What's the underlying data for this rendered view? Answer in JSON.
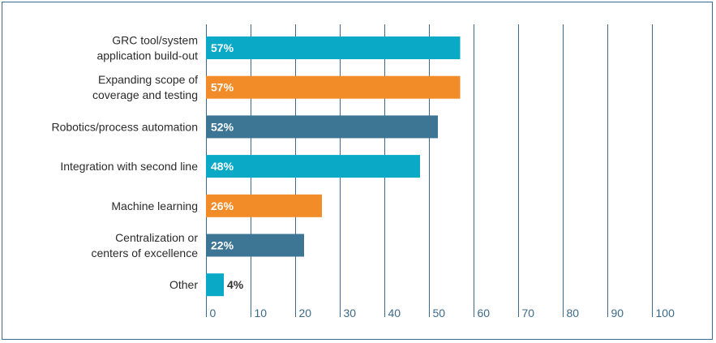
{
  "chart_data": {
    "type": "bar",
    "orientation": "horizontal",
    "title": "",
    "xlabel": "",
    "ylabel": "",
    "xlim": [
      0,
      100
    ],
    "x_ticks": [
      "0",
      "10",
      "20",
      "30",
      "40",
      "50",
      "60",
      "70",
      "80",
      "90",
      "100"
    ],
    "grid": true,
    "categories": [
      [
        "GRC tool/system",
        "application build-out"
      ],
      [
        "Expanding scope of",
        "coverage and testing"
      ],
      [
        "Robotics/process automation"
      ],
      [
        "Integration with second line"
      ],
      [
        "Machine learning"
      ],
      [
        "Centralization or",
        "centers of excellence"
      ],
      [
        "Other"
      ]
    ],
    "values": [
      57,
      57,
      52,
      48,
      26,
      22,
      4
    ],
    "data_labels": [
      "57%",
      "57%",
      "52%",
      "48%",
      "26%",
      "22%",
      "4%"
    ],
    "colors": [
      "#0aa9c6",
      "#f28c28",
      "#3d7694",
      "#0aa9c6",
      "#f28c28",
      "#3d7694",
      "#0aa9c6"
    ],
    "label_text_colors": [
      "#ffffff",
      "#ffffff",
      "#ffffff",
      "#ffffff",
      "#ffffff",
      "#ffffff",
      "#333333"
    ],
    "grid_color": "#3d6a8a",
    "tick_color": "#3d6a8a"
  }
}
